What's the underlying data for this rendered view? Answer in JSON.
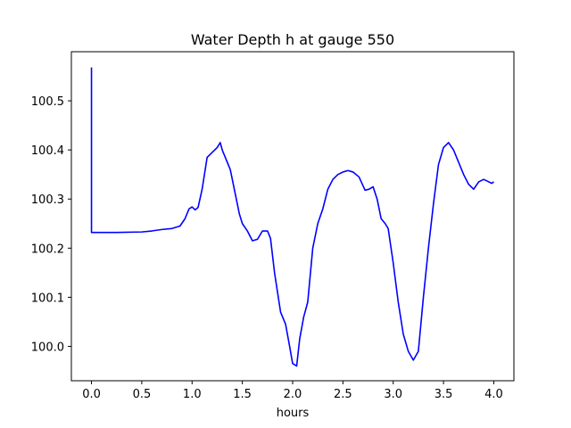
{
  "chart_data": {
    "type": "line",
    "title": "Water Depth h at gauge 550",
    "xlabel": "hours",
    "ylabel": "",
    "xlim": [
      -0.2,
      4.2
    ],
    "ylim": [
      99.93,
      100.6
    ],
    "x_ticks": [
      0.0,
      0.5,
      1.0,
      1.5,
      2.0,
      2.5,
      3.0,
      3.5,
      4.0
    ],
    "x_tick_labels": [
      "0.0",
      "0.5",
      "1.0",
      "1.5",
      "2.0",
      "2.5",
      "3.0",
      "3.5",
      "4.0"
    ],
    "y_ticks": [
      100.0,
      100.1,
      100.2,
      100.3,
      100.4,
      100.5
    ],
    "y_tick_labels": [
      "100.0",
      "100.1",
      "100.2",
      "100.3",
      "100.4",
      "100.5"
    ],
    "grid": false,
    "series": [
      {
        "color": "#0000ff",
        "x": [
          0.0,
          0.0,
          0.0,
          0.25,
          0.5,
          0.6,
          0.7,
          0.8,
          0.88,
          0.93,
          0.97,
          1.0,
          1.03,
          1.06,
          1.1,
          1.15,
          1.2,
          1.25,
          1.28,
          1.3,
          1.33,
          1.38,
          1.43,
          1.47,
          1.5,
          1.55,
          1.6,
          1.65,
          1.7,
          1.75,
          1.78,
          1.82,
          1.88,
          1.93,
          1.97,
          2.0,
          2.04,
          2.07,
          2.11,
          2.15,
          2.2,
          2.25,
          2.3,
          2.35,
          2.4,
          2.45,
          2.5,
          2.55,
          2.6,
          2.66,
          2.72,
          2.76,
          2.8,
          2.84,
          2.88,
          2.92,
          2.95,
          3.0,
          3.05,
          3.1,
          3.15,
          3.2,
          3.25,
          3.3,
          3.35,
          3.4,
          3.45,
          3.5,
          3.55,
          3.6,
          3.65,
          3.7,
          3.75,
          3.8,
          3.85,
          3.9,
          3.95,
          3.98,
          4.0
        ],
        "y": [
          100.568,
          100.235,
          100.232,
          100.232,
          100.233,
          100.235,
          100.238,
          100.24,
          100.245,
          100.26,
          100.28,
          100.284,
          100.278,
          100.283,
          100.32,
          100.385,
          100.395,
          100.405,
          100.415,
          100.4,
          100.385,
          100.36,
          100.31,
          100.27,
          100.25,
          100.235,
          100.215,
          100.218,
          100.235,
          100.235,
          100.22,
          100.15,
          100.07,
          100.045,
          100.0,
          99.965,
          99.96,
          100.015,
          100.06,
          100.09,
          100.2,
          100.25,
          100.28,
          100.32,
          100.34,
          100.35,
          100.355,
          100.358,
          100.355,
          100.345,
          100.318,
          100.32,
          100.325,
          100.3,
          100.26,
          100.25,
          100.24,
          100.17,
          100.09,
          100.025,
          99.99,
          99.972,
          99.99,
          100.1,
          100.2,
          100.29,
          100.37,
          100.405,
          100.415,
          100.4,
          100.375,
          100.35,
          100.33,
          100.32,
          100.335,
          100.34,
          100.335,
          100.332,
          100.335
        ]
      }
    ]
  }
}
